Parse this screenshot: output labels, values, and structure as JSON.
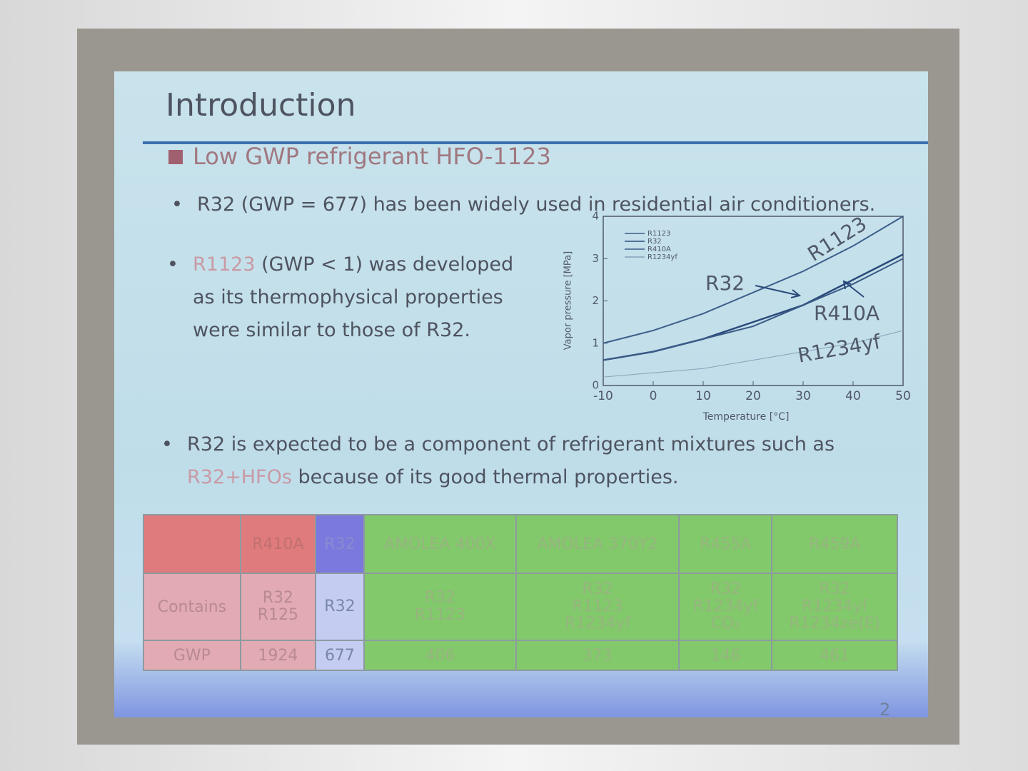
{
  "slide": {
    "title": "Introduction",
    "heading": "Low GWP refrigerant HFO-1123",
    "bullets": [
      {
        "text": "R32 (GWP = 677) has been widely used in residential air conditioners."
      },
      {
        "highlight": "R1123",
        "text": " (GWP < 1) was developed as its thermophysical properties were similar to those of R32."
      },
      {
        "text": "R32 is expected to be a component of refrigerant mixtures such as ",
        "highlight": "R32+HFOs",
        "text_after": " because of its good thermal properties."
      }
    ],
    "chart": {
      "type": "line",
      "xlabel": "Temperature [°C]",
      "ylabel": "Vapor pressure [MPa]",
      "x": [
        -10,
        0,
        10,
        20,
        30,
        40,
        50
      ],
      "xlim": [
        -10,
        50
      ],
      "ylim": [
        0,
        4
      ],
      "xticks": [
        -10,
        0,
        10,
        20,
        30,
        40,
        50
      ],
      "yticks": [
        0,
        1,
        2,
        3,
        4
      ],
      "series": [
        {
          "name": "R1123",
          "color": "#3d5f8a",
          "values": [
            1.0,
            1.3,
            1.7,
            2.2,
            2.7,
            3.3,
            4.0
          ]
        },
        {
          "name": "R32",
          "color": "#2a4a7a",
          "values": [
            0.6,
            0.8,
            1.1,
            1.5,
            1.9,
            2.5,
            3.1
          ]
        },
        {
          "name": "R410A",
          "color": "#3a5a86",
          "values": [
            0.6,
            0.8,
            1.1,
            1.4,
            1.9,
            2.4,
            3.0
          ]
        },
        {
          "name": "R1234yf",
          "color": "#8aa0b8",
          "values": [
            0.2,
            0.3,
            0.4,
            0.6,
            0.8,
            1.0,
            1.3
          ]
        }
      ]
    },
    "table": {
      "columns": [
        "R410A",
        "R32",
        "AMOLEA 400X",
        "AMOLEA 370Y2",
        "R455A",
        "R459A"
      ],
      "row_labels": [
        "Contains",
        "GWP"
      ],
      "contains": [
        [
          "R32",
          "R125"
        ],
        [
          "R32"
        ],
        [
          "R32",
          "R1123"
        ],
        [
          "R32",
          "R1123",
          "R1234yf"
        ],
        [
          "R32",
          "R1234yf",
          "CO₂"
        ],
        [
          "R32",
          "R1234yf",
          "R1234ze(E)"
        ]
      ],
      "gwp": [
        1924,
        677,
        406,
        373,
        146,
        461
      ]
    },
    "page_number": "2"
  }
}
